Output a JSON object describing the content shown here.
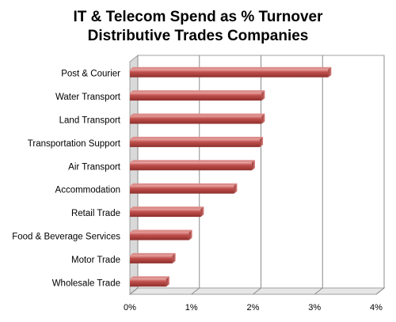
{
  "chart_data": {
    "type": "bar",
    "orientation": "horizontal",
    "title": "IT & Telecom Spend as % Turnover",
    "subtitle": "Distributive Trades Companies",
    "categories": [
      "Post & Courier",
      "Water Transport",
      "Land Transport",
      "Transportation Support",
      "Air Transport",
      "Accommodation",
      "Retail Trade",
      "Food & Beverage Services",
      "Motor Trade",
      "Wholesale Trade"
    ],
    "values": [
      0.0322,
      0.0214,
      0.0214,
      0.0211,
      0.0198,
      0.0169,
      0.0115,
      0.0096,
      0.0069,
      0.0059
    ],
    "xlim": [
      0,
      0.04
    ],
    "xticks": [
      0,
      0.01,
      0.02,
      0.03,
      0.04
    ],
    "xtick_labels": [
      "0%",
      "1%",
      "2%",
      "3%",
      "4%"
    ],
    "grid": true,
    "bar_color": "#c0504d"
  }
}
